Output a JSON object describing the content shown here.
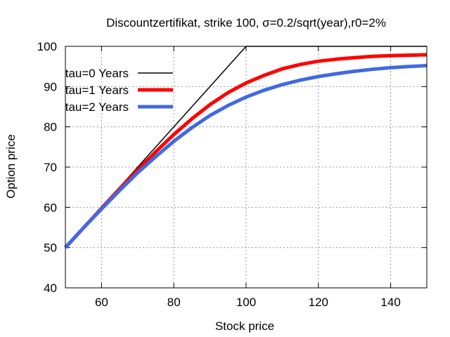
{
  "chart_data": {
    "type": "line",
    "title": "Discountzertifikat, strike 100, σ=0.2/sqrt(year),r0=2%",
    "xlabel": "Stock price",
    "ylabel": "Option price",
    "xlim": [
      50,
      150
    ],
    "ylim": [
      40,
      100
    ],
    "xticks": [
      60,
      80,
      100,
      120,
      140
    ],
    "yticks": [
      40,
      50,
      60,
      70,
      80,
      90,
      100
    ],
    "grid": true,
    "legend_position": "top-left",
    "series": [
      {
        "name": "tau=0 Years",
        "color": "#000000",
        "x": [
          50,
          100,
          150
        ],
        "values": [
          50,
          100,
          100
        ]
      },
      {
        "name": "tau=1 Years",
        "color": "#ff0000",
        "x": [
          50,
          55,
          60,
          65,
          70,
          75,
          80,
          85,
          90,
          95,
          100,
          105,
          110,
          115,
          120,
          125,
          130,
          135,
          140,
          145,
          150
        ],
        "values": [
          50.0,
          54.9,
          59.8,
          64.6,
          69.3,
          73.8,
          78.1,
          82.0,
          85.5,
          88.5,
          90.9,
          92.8,
          94.4,
          95.5,
          96.3,
          96.8,
          97.2,
          97.5,
          97.7,
          97.8,
          97.9
        ]
      },
      {
        "name": "tau=2 Years",
        "color": "#4169e1",
        "x": [
          50,
          55,
          60,
          65,
          70,
          75,
          80,
          85,
          90,
          95,
          100,
          105,
          110,
          115,
          120,
          125,
          130,
          135,
          140,
          145,
          150
        ],
        "values": [
          50.0,
          54.9,
          59.6,
          64.2,
          68.6,
          72.6,
          76.4,
          79.8,
          82.8,
          85.3,
          87.4,
          89.1,
          90.5,
          91.6,
          92.5,
          93.2,
          93.8,
          94.3,
          94.7,
          95.0,
          95.2
        ]
      }
    ]
  }
}
